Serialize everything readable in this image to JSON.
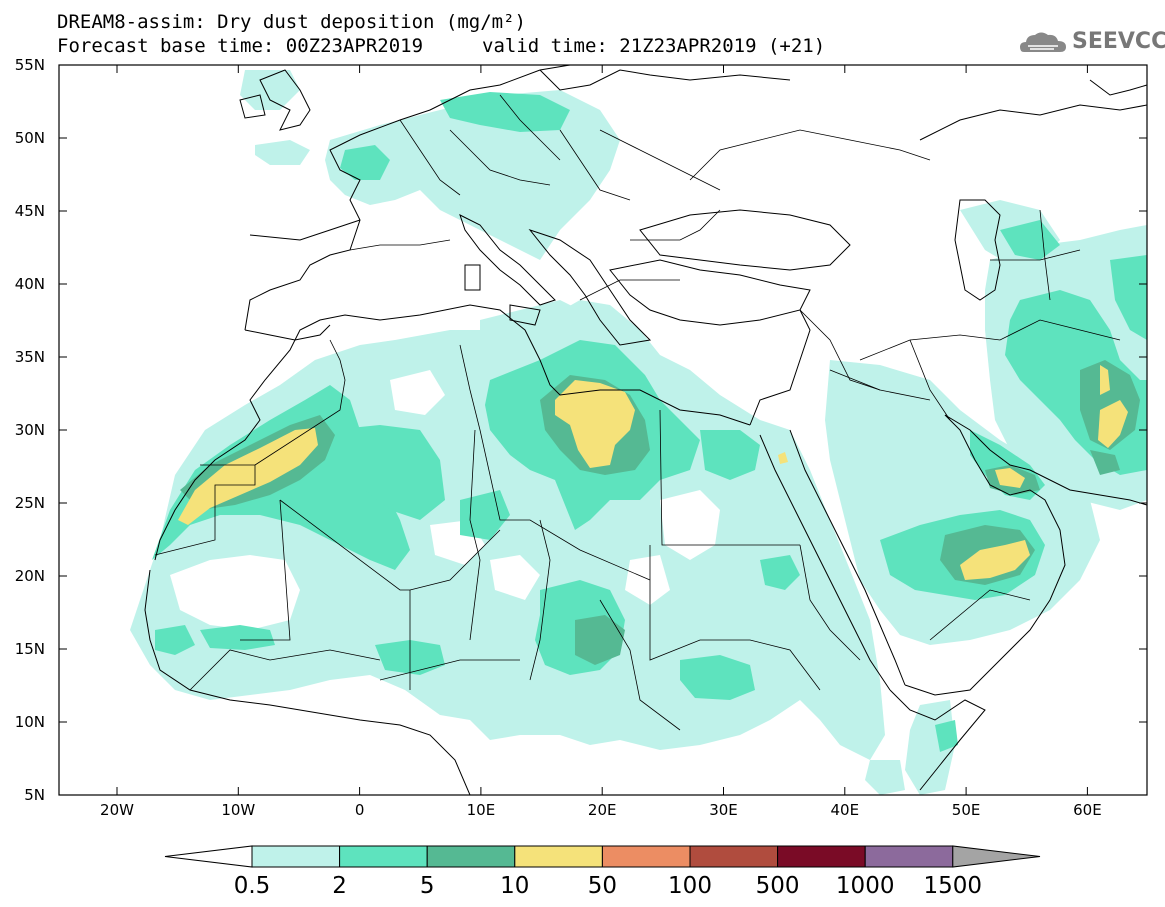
{
  "title": {
    "line1": "DREAM8-assim: Dry dust deposition (mg/m²)",
    "line2": "Forecast base time: 00Z23APR2019",
    "valid": "valid time: 21Z23APR2019 (+21)"
  },
  "logo": {
    "text": "SEEVCCC",
    "icon": "cloud-icon"
  },
  "axes": {
    "lat_labels": [
      "55N",
      "50N",
      "45N",
      "40N",
      "35N",
      "30N",
      "25N",
      "20N",
      "15N",
      "10N",
      "5N"
    ],
    "lon_labels": [
      "20W",
      "10W",
      "0",
      "10E",
      "20E",
      "30E",
      "40E",
      "50E",
      "60E"
    ]
  },
  "colorbar": {
    "colors": [
      "#bff2ea",
      "#5ee3be",
      "#55b993",
      "#f5e27a",
      "#ec8d63",
      "#b04c3e",
      "#7a0b26",
      "#8c6a9c"
    ],
    "under_color": "#ffffff",
    "over_color": "#a4a4a4",
    "labels": [
      "0.5",
      "2",
      "5",
      "10",
      "50",
      "100",
      "500",
      "1000",
      "1500"
    ]
  },
  "colors": {
    "level1": "#bff2ea",
    "level2": "#5ee3be",
    "level3": "#55b993",
    "level4": "#f5e27a"
  }
}
